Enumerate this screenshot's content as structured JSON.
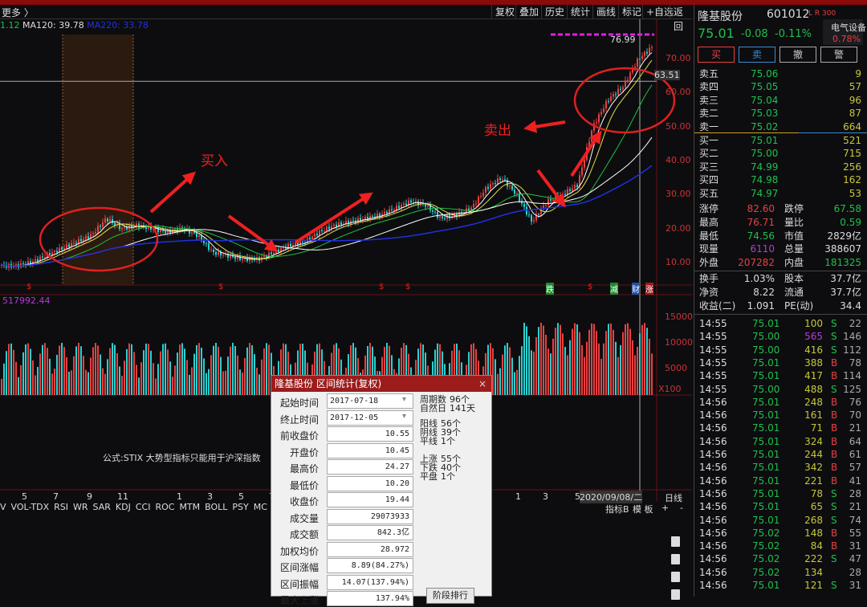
{
  "toolbar": {
    "more": "更多 〉",
    "buttons": [
      "复权",
      "叠加",
      "历史",
      "统计",
      "画线",
      "标记",
      "+自选",
      "返回"
    ]
  },
  "ma": {
    "ma60_tail": "1.12",
    "ma120": "MA120: 39.78",
    "ma220": "MA220: 33.78"
  },
  "price_axis": [
    "70.00",
    "60.00",
    "50.00",
    "40.00",
    "30.00",
    "20.00",
    "10.00"
  ],
  "crosshair_price": "63.51",
  "high_label": "76.99",
  "annotations": {
    "buy": "买入",
    "sell": "卖出"
  },
  "markers": {
    "fall": "跌",
    "reduce": "减",
    "finance": "财",
    "rise": "涨",
    "dollar": "$"
  },
  "volume": {
    "label": "517992.44",
    "axis": [
      "15000",
      "10000",
      "5000"
    ],
    "unit": "X100"
  },
  "indicator_note": "公式:STIX 大势型指标只能用于沪深指数",
  "x_axis": [
    "5",
    "7",
    "9",
    "11",
    "1",
    "3",
    "5",
    "7",
    "1",
    "3",
    "5"
  ],
  "cursor_date": "2020/09/08/二",
  "period": "日线",
  "indicator_tabs": [
    "V",
    "VOL-TDX",
    "RSI",
    "WR",
    "SAR",
    "KDJ",
    "CCI",
    "ROC",
    "MTM",
    "BOLL",
    "PSY",
    "MC"
  ],
  "indicator_right": [
    "指标B",
    "模 板",
    "+",
    "-"
  ],
  "chart_data": {
    "type": "candlestick",
    "ylim": [
      5,
      78
    ],
    "closes": [
      9,
      9,
      10,
      12,
      14,
      16,
      18,
      23,
      20,
      21,
      20,
      19,
      20,
      18,
      13,
      12,
      11,
      11,
      13,
      15,
      16,
      19,
      21,
      22,
      23,
      24,
      26,
      28,
      27,
      23,
      24,
      26,
      32,
      35,
      30,
      22,
      28,
      30,
      33,
      50,
      58,
      62,
      70,
      74
    ]
  },
  "colors": {
    "up": "#e84040",
    "down": "#2ad0d0",
    "ma1": "#ffffff",
    "ma2": "#e0e040",
    "ma3": "#20c040",
    "ma4": "#c040c0",
    "ma5": "#2030e0",
    "accent": "#9c1c1c"
  },
  "quote": {
    "name": "隆基股份",
    "code": "601012",
    "flags": "L R 300",
    "sector": "电气设备",
    "sector_change": "0.78%",
    "price": "75.01",
    "change": "-0.08",
    "pct": "-0.11%",
    "buttons": [
      "买",
      "卖",
      "撤",
      "警"
    ],
    "asks": [
      [
        "卖五",
        "75.06",
        "9"
      ],
      [
        "卖四",
        "75.05",
        "57"
      ],
      [
        "卖三",
        "75.04",
        "96"
      ],
      [
        "卖二",
        "75.03",
        "87"
      ],
      [
        "卖一",
        "75.02",
        "664"
      ]
    ],
    "bids": [
      [
        "买一",
        "75.01",
        "521"
      ],
      [
        "买二",
        "75.00",
        "715"
      ],
      [
        "买三",
        "74.99",
        "256"
      ],
      [
        "买四",
        "74.98",
        "162"
      ],
      [
        "买五",
        "74.97",
        "53"
      ]
    ],
    "stats": [
      [
        "涨停",
        "82.60",
        "跌停",
        "67.58"
      ],
      [
        "最高",
        "76.71",
        "量比",
        "0.59"
      ],
      [
        "最低",
        "74.56",
        "市值",
        "2829亿"
      ],
      [
        "现量",
        "6110",
        "总量",
        "388607"
      ],
      [
        "外盘",
        "207282",
        "内盘",
        "181325"
      ]
    ],
    "stats2": [
      [
        "换手",
        "1.03%",
        "股本",
        "37.7亿"
      ],
      [
        "净资",
        "8.22",
        "流通",
        "37.7亿"
      ],
      [
        "收益(二)",
        "1.091",
        "PE(动)",
        "34.4"
      ]
    ]
  },
  "ticks": [
    [
      "14:55",
      "75.01",
      "100",
      "S",
      "22"
    ],
    [
      "14:55",
      "75.00",
      "565",
      "S",
      "146"
    ],
    [
      "14:55",
      "75.00",
      "416",
      "S",
      "112"
    ],
    [
      "14:55",
      "75.01",
      "388",
      "B",
      "78"
    ],
    [
      "14:55",
      "75.01",
      "417",
      "B",
      "114"
    ],
    [
      "14:55",
      "75.00",
      "488",
      "S",
      "125"
    ],
    [
      "14:56",
      "75.01",
      "248",
      "B",
      "76"
    ],
    [
      "14:56",
      "75.01",
      "161",
      "B",
      "70"
    ],
    [
      "14:56",
      "75.01",
      "71",
      "B",
      "21"
    ],
    [
      "14:56",
      "75.01",
      "324",
      "B",
      "64"
    ],
    [
      "14:56",
      "75.01",
      "244",
      "B",
      "61"
    ],
    [
      "14:56",
      "75.01",
      "342",
      "B",
      "57"
    ],
    [
      "14:56",
      "75.01",
      "221",
      "B",
      "41"
    ],
    [
      "14:56",
      "75.01",
      "78",
      "S",
      "28"
    ],
    [
      "14:56",
      "75.01",
      "65",
      "S",
      "21"
    ],
    [
      "14:56",
      "75.01",
      "268",
      "S",
      "74"
    ],
    [
      "14:56",
      "75.02",
      "148",
      "B",
      "55"
    ],
    [
      "14:56",
      "75.02",
      "84",
      "B",
      "31"
    ],
    [
      "14:56",
      "75.02",
      "222",
      "S",
      "47"
    ],
    [
      "14:56",
      "75.02",
      "134",
      "",
      "28"
    ],
    [
      "14:56",
      "75.01",
      "121",
      "S",
      "31"
    ]
  ],
  "dialog": {
    "title": "隆基股份 区间统计(复权)",
    "close": "×",
    "fields": [
      [
        "起始时间",
        "2017-07-18"
      ],
      [
        "终止时间",
        "2017-12-05"
      ],
      [
        "前收盘价",
        "10.55"
      ],
      [
        "开盘价",
        "10.45"
      ],
      [
        "最高价",
        "24.27"
      ],
      [
        "最低价",
        "10.20"
      ],
      [
        "收盘价",
        "19.44"
      ],
      [
        "成交量",
        "29073933"
      ],
      [
        "成交额",
        "842.3亿"
      ],
      [
        "加权均价",
        "28.972"
      ],
      [
        "区间涨幅",
        "8.89(84.27%)"
      ],
      [
        "区间振幅",
        "14.07(137.94%)"
      ],
      [
        "最大上涨",
        "137.94%"
      ]
    ],
    "side": [
      [
        "周期数",
        "96个"
      ],
      [
        "自然日",
        "141天"
      ],
      [
        "阳线",
        "56个"
      ],
      [
        "阴线",
        "39个"
      ],
      [
        "平线",
        "1个"
      ],
      [
        "上涨",
        "55个"
      ],
      [
        "下跌",
        "40个"
      ],
      [
        "平盘",
        "1个"
      ]
    ],
    "rank_button": "阶段排行"
  }
}
